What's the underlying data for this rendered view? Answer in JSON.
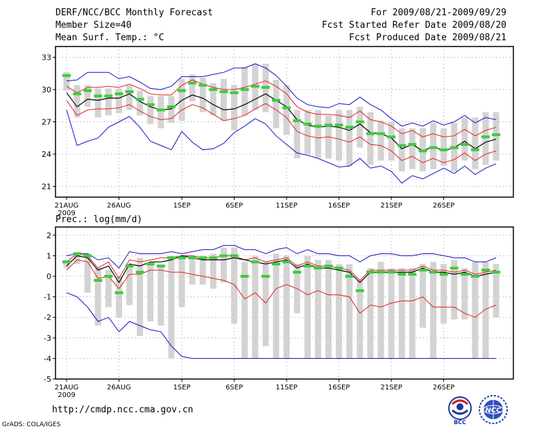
{
  "header": {
    "title": "DERF/NCC/BCC Monthly Forecast",
    "member_size": "Member Size=40",
    "variable": "Mean Surf. Temp.: °C",
    "period": "For 2009/08/21-2009/09/29",
    "started": "Fcst Started Refer Date 2009/08/20",
    "produced": "Fcst Produced Date 2009/08/21"
  },
  "footer": {
    "url": "http://cmdp.ncc.cma.gov.cn",
    "grads": "GrADS: COLA/IGES"
  },
  "logos": {
    "bcc": "BCC",
    "ncc": "NCC"
  },
  "colors": {
    "ensemble_mean": "#000000",
    "std_band": "#e02020",
    "extreme": "#1010c0",
    "box": "#d3d3d3",
    "median": "#3ccc3c"
  },
  "chart_data": [
    {
      "type": "box-ensemble",
      "title": "Mean Surf. Temp.: °C",
      "x_tick_labels": [
        "21AUG",
        "26AUG",
        "1SEP",
        "6SEP",
        "11SEP",
        "16SEP",
        "21SEP",
        "26SEP"
      ],
      "x_year_label": "2009",
      "ylim": [
        20,
        34
      ],
      "yticks": [
        21,
        24,
        27,
        30,
        33
      ],
      "series": {
        "median": [
          31.3,
          29.6,
          29.9,
          29.4,
          29.4,
          29.6,
          29.8,
          29.1,
          28.6,
          28.1,
          28.4,
          29.9,
          30.6,
          30.4,
          30.0,
          29.8,
          29.7,
          30.0,
          30.3,
          30.2,
          29.0,
          28.3,
          27.1,
          26.8,
          26.6,
          26.7,
          26.7,
          26.5,
          27.0,
          25.9,
          25.9,
          25.6,
          24.8,
          24.9,
          24.3,
          24.6,
          24.4,
          24.6,
          24.9,
          24.4,
          25.6,
          25.8
        ],
        "box_low": [
          29.9,
          27.4,
          28.4,
          27.4,
          27.6,
          27.8,
          28.1,
          27.6,
          26.8,
          26.4,
          26.9,
          27.1,
          28.9,
          27.9,
          27.6,
          27.1,
          26.2,
          27.6,
          28.1,
          27.9,
          26.4,
          25.8,
          23.6,
          24.0,
          23.6,
          23.6,
          23.4,
          22.9,
          24.6,
          23.0,
          23.4,
          23.4,
          22.4,
          22.6,
          22.4,
          22.6,
          22.9,
          22.4,
          23.4,
          22.6,
          23.0,
          23.4
        ],
        "box_high": [
          31.6,
          30.4,
          30.4,
          30.1,
          30.1,
          30.1,
          30.4,
          29.9,
          29.4,
          29.4,
          29.4,
          31.0,
          31.4,
          31.1,
          30.6,
          31.0,
          30.4,
          32.1,
          32.4,
          32.4,
          30.9,
          30.4,
          28.1,
          28.1,
          28.1,
          27.6,
          28.1,
          28.1,
          28.4,
          27.9,
          27.1,
          27.0,
          26.4,
          26.4,
          26.4,
          26.9,
          26.4,
          26.9,
          27.4,
          27.4,
          27.9,
          27.9
        ],
        "mean": [
          29.7,
          28.4,
          29.1,
          29.0,
          29.2,
          29.2,
          29.6,
          28.9,
          28.4,
          28.1,
          28.2,
          29.0,
          29.5,
          29.2,
          28.6,
          28.1,
          28.2,
          28.6,
          29.1,
          29.6,
          29.0,
          28.4,
          27.2,
          26.7,
          26.5,
          26.6,
          26.5,
          26.2,
          26.8,
          26.0,
          25.9,
          25.5,
          24.5,
          24.9,
          24.3,
          24.7,
          24.3,
          24.6,
          25.2,
          24.5,
          25.1,
          25.4
        ],
        "plus_std": [
          30.3,
          29.7,
          30.2,
          30.2,
          30.3,
          30.2,
          30.5,
          30.1,
          29.6,
          29.5,
          29.5,
          30.4,
          30.9,
          30.5,
          30.2,
          30.0,
          30.0,
          30.2,
          30.5,
          30.8,
          30.3,
          29.6,
          28.4,
          27.9,
          27.7,
          27.7,
          27.6,
          27.4,
          28.0,
          27.2,
          27.0,
          26.6,
          25.9,
          26.2,
          25.6,
          25.9,
          25.6,
          25.7,
          26.3,
          25.7,
          26.2,
          26.5
        ],
        "minus_std": [
          29.0,
          27.6,
          28.1,
          28.2,
          28.2,
          28.3,
          28.6,
          28.0,
          27.5,
          27.2,
          27.3,
          28.1,
          28.6,
          28.3,
          27.7,
          27.1,
          27.3,
          27.6,
          28.2,
          28.7,
          28.1,
          27.4,
          26.1,
          25.7,
          25.5,
          25.6,
          25.4,
          25.1,
          25.6,
          24.9,
          24.8,
          24.3,
          23.4,
          23.8,
          23.2,
          23.6,
          23.2,
          23.5,
          24.1,
          23.4,
          24.0,
          24.3
        ],
        "max": [
          30.8,
          30.9,
          31.6,
          31.6,
          31.6,
          31.0,
          31.2,
          30.7,
          30.1,
          30.0,
          30.3,
          31.2,
          31.2,
          31.2,
          31.4,
          31.6,
          32.0,
          32.0,
          32.4,
          32.0,
          31.3,
          30.3,
          29.2,
          28.6,
          28.4,
          28.3,
          28.7,
          28.6,
          29.3,
          28.6,
          28.1,
          27.3,
          26.6,
          26.9,
          26.6,
          27.1,
          26.7,
          27.0,
          27.6,
          26.9,
          27.4,
          27.2
        ],
        "min": [
          28.1,
          24.8,
          25.2,
          25.5,
          26.5,
          27.0,
          27.5,
          26.5,
          25.2,
          24.8,
          24.4,
          26.1,
          25.1,
          24.4,
          24.5,
          25.0,
          26.0,
          26.6,
          27.3,
          26.8,
          25.7,
          24.9,
          24.1,
          23.9,
          23.6,
          23.2,
          22.8,
          22.9,
          23.6,
          22.7,
          22.9,
          22.4,
          21.3,
          22.0,
          21.7,
          22.2,
          22.7,
          22.2,
          22.9,
          22.1,
          22.7,
          23.1
        ]
      }
    },
    {
      "type": "box-ensemble",
      "title": "Prec.: log(mm/d)",
      "x_tick_labels": [
        "21AUG",
        "26AUG",
        "1SEP",
        "6SEP",
        "11SEP",
        "16SEP",
        "21SEP",
        "26SEP"
      ],
      "x_year_label": "2009",
      "ylim": [
        -5,
        2.4
      ],
      "yticks": [
        -5,
        -4,
        -3,
        -2,
        -1,
        0,
        1,
        2
      ],
      "series": {
        "median": [
          0.7,
          1.1,
          1.0,
          -0.2,
          0.0,
          -0.8,
          0.5,
          0.2,
          0.6,
          0.5,
          0.9,
          0.9,
          0.9,
          0.9,
          0.9,
          1.0,
          1.0,
          0.0,
          0.7,
          0.0,
          0.6,
          0.7,
          0.2,
          0.5,
          0.4,
          0.5,
          0.4,
          0.0,
          -0.7,
          0.2,
          0.2,
          0.2,
          0.1,
          0.1,
          0.3,
          0.2,
          0.1,
          0.4,
          0.1,
          0.0,
          0.3,
          0.2
        ],
        "box_low": [
          0.4,
          0.6,
          -0.8,
          -2.4,
          -1.5,
          -2.0,
          -1.4,
          -2.9,
          -2.2,
          -2.4,
          -4.0,
          -1.5,
          -0.4,
          -0.4,
          -0.6,
          -0.3,
          -2.3,
          -4.0,
          -4.0,
          -3.4,
          -4.0,
          -4.0,
          -1.8,
          -4.0,
          -4.0,
          -4.0,
          -4.0,
          -4.0,
          -4.0,
          -4.0,
          -4.0,
          -4.0,
          -4.0,
          -4.0,
          -2.5,
          -4.0,
          -2.3,
          -2.1,
          -2.1,
          -4.0,
          -4.0,
          -2.0
        ],
        "box_high": [
          0.8,
          1.1,
          1.1,
          0.4,
          0.3,
          0.0,
          0.6,
          0.9,
          0.6,
          0.5,
          1.0,
          0.9,
          1.0,
          1.0,
          1.1,
          1.4,
          1.4,
          0.7,
          1.0,
          0.7,
          1.1,
          1.0,
          0.6,
          1.0,
          0.8,
          0.8,
          0.6,
          0.6,
          -0.2,
          0.4,
          0.7,
          0.4,
          0.4,
          0.4,
          0.6,
          0.7,
          0.6,
          0.8,
          0.4,
          0.7,
          0.7,
          0.6
        ],
        "mean": [
          0.5,
          1.0,
          0.9,
          0.3,
          0.5,
          -0.3,
          0.6,
          0.5,
          0.7,
          0.7,
          0.8,
          1.0,
          0.9,
          0.8,
          0.8,
          0.8,
          0.9,
          0.8,
          0.7,
          0.6,
          0.7,
          0.8,
          0.4,
          0.6,
          0.4,
          0.4,
          0.3,
          0.2,
          -0.3,
          0.2,
          0.2,
          0.2,
          0.2,
          0.2,
          0.4,
          0.2,
          0.2,
          0.1,
          0.2,
          0.0,
          0.1,
          0.2
        ],
        "plus_std": [
          0.7,
          1.1,
          1.0,
          0.4,
          0.7,
          -0.1,
          0.8,
          0.7,
          0.8,
          0.9,
          0.9,
          1.0,
          1.0,
          0.9,
          0.9,
          1.0,
          1.0,
          0.8,
          0.9,
          0.7,
          0.8,
          0.9,
          0.5,
          0.7,
          0.5,
          0.5,
          0.4,
          0.3,
          -0.2,
          0.3,
          0.3,
          0.3,
          0.3,
          0.3,
          0.5,
          0.3,
          0.3,
          0.2,
          0.3,
          0.1,
          0.2,
          0.3
        ],
        "minus_std": [
          0.3,
          0.8,
          0.7,
          -0.1,
          0.0,
          -0.6,
          0.1,
          0.1,
          0.3,
          0.3,
          0.2,
          0.2,
          0.1,
          0.0,
          -0.1,
          -0.2,
          -0.4,
          -1.1,
          -0.8,
          -1.3,
          -0.6,
          -0.4,
          -0.6,
          -0.9,
          -0.7,
          -0.9,
          -0.9,
          -1.0,
          -1.8,
          -1.4,
          -1.5,
          -1.3,
          -1.2,
          -1.2,
          -1.0,
          -1.5,
          -1.5,
          -1.5,
          -1.8,
          -2.0,
          -1.6,
          -1.4
        ],
        "max": [
          1.0,
          1.1,
          1.1,
          0.8,
          0.9,
          0.4,
          1.2,
          1.1,
          1.1,
          1.1,
          1.2,
          1.1,
          1.2,
          1.3,
          1.3,
          1.5,
          1.5,
          1.3,
          1.3,
          1.1,
          1.3,
          1.4,
          1.1,
          1.3,
          1.1,
          1.1,
          1.0,
          1.0,
          0.7,
          1.0,
          1.1,
          1.1,
          1.0,
          1.0,
          1.1,
          1.1,
          1.0,
          0.9,
          0.9,
          0.7,
          0.7,
          0.9
        ],
        "min": [
          -0.8,
          -1.0,
          -1.5,
          -2.2,
          -2.0,
          -2.7,
          -2.2,
          -2.4,
          -2.6,
          -2.7,
          -3.4,
          -3.9,
          -4.0,
          -4.0,
          -4.0,
          -4.0,
          -4.0,
          -4.0,
          -4.0,
          -4.0,
          -4.0,
          -4.0,
          -4.0,
          -4.0,
          -4.0,
          -4.0,
          -4.0,
          -4.0,
          -4.0,
          -4.0,
          -4.0,
          -4.0,
          -4.0,
          -4.0,
          -4.0,
          -4.0,
          -4.0,
          -4.0,
          -4.0,
          -4.0,
          -4.0,
          -4.0
        ]
      }
    }
  ]
}
